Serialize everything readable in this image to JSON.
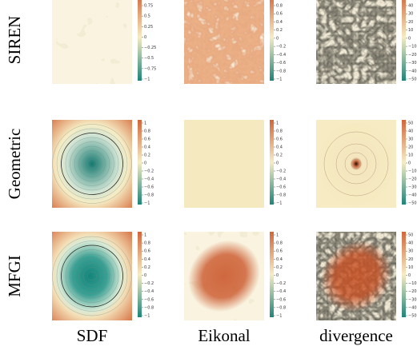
{
  "columns": [
    "SDF",
    "Eikonal",
    "divergence"
  ],
  "rows": [
    {
      "label": "SIREN",
      "panels": [
        {
          "ticks": [
            "0.75",
            "0.5",
            "0.25",
            "0",
            "−0.25",
            "−0.5",
            "−0.75",
            "−1"
          ]
        },
        {
          "ticks": [
            "0.8",
            "0.6",
            "0.4",
            "0.2",
            "0",
            "−0.2",
            "−0.4",
            "−0.6",
            "−0.8",
            "−1"
          ]
        },
        {
          "ticks": [
            "40",
            "30",
            "20",
            "10",
            "0",
            "−10",
            "−20",
            "−30",
            "−40",
            "−50"
          ]
        }
      ]
    },
    {
      "label": "Geometric",
      "panels": [
        {
          "ticks": [
            "1",
            "0.8",
            "0.6",
            "0.4",
            "0.2",
            "0",
            "−0.2",
            "−0.4",
            "−0.6",
            "−0.8",
            "−1"
          ]
        },
        {
          "ticks": [
            "1",
            "0.8",
            "0.6",
            "0.4",
            "0.2",
            "0",
            "−0.2",
            "−0.4",
            "−0.6",
            "−0.8",
            "−1"
          ]
        },
        {
          "ticks": [
            "50",
            "40",
            "30",
            "20",
            "10",
            "0",
            "−10",
            "−20",
            "−30",
            "−40",
            "−50"
          ]
        }
      ]
    },
    {
      "label": "MFGI",
      "panels": [
        {
          "ticks": [
            "1",
            "0.8",
            "0.6",
            "0.4",
            "0.2",
            "0",
            "−0.2",
            "−0.4",
            "−0.6",
            "−0.8",
            "−1"
          ]
        },
        {
          "ticks": [
            "1",
            "0.8",
            "0.6",
            "0.4",
            "0.2",
            "0",
            "−0.2",
            "−0.4",
            "−0.6",
            "−0.8",
            "−1"
          ]
        },
        {
          "ticks": [
            "50",
            "40",
            "30",
            "20",
            "10",
            "0",
            "−10",
            "−20",
            "−30",
            "−40",
            "−50"
          ]
        }
      ]
    }
  ]
}
